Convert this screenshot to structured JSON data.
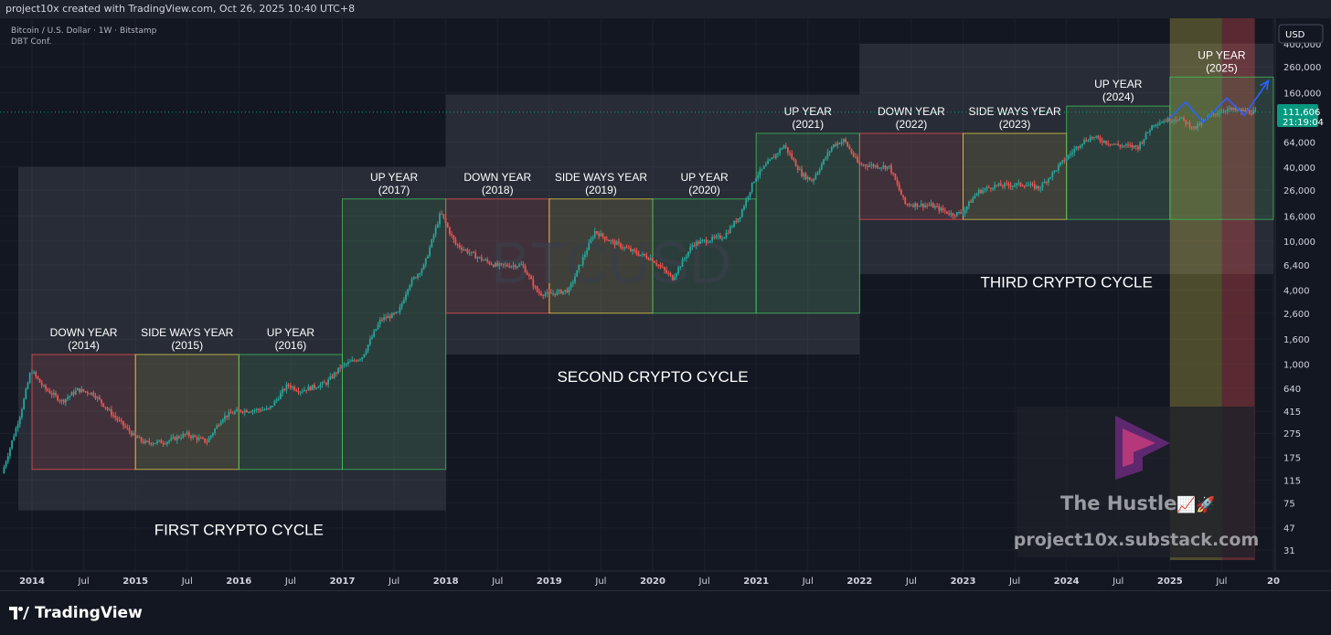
{
  "header": {
    "text": "project10x created with TradingView.com, Oct 26, 2025 10:40 UTC+8"
  },
  "legend": {
    "line1": "Bitcoin / U.S. Dollar · 1W · Bitstamp",
    "line2": "DBT Conf."
  },
  "watermark": "BTCUSD",
  "currency_button": "USD",
  "price_badge": {
    "price": "111,606",
    "countdown": "21:19:04"
  },
  "promo": {
    "title": "The Hustle",
    "emoji": "📈🚀",
    "url": "project10x.substack.com"
  },
  "footer": {
    "brand": "TradingView"
  },
  "colors": {
    "background": "#131722",
    "candle_up": "#26a69a",
    "candle_down": "#ef5350",
    "down_zone": "#ef5350",
    "sideways_zone": "#e6d34a",
    "up_zone": "#43c159",
    "cycle_band": "#787b86",
    "forecast_arrow": "#2962ff",
    "price_badge": "#089981"
  },
  "chart_data": {
    "type": "candlestick",
    "title": "",
    "x_ticks": [
      "2014",
      "Jul",
      "2015",
      "Jul",
      "2016",
      "Jul",
      "2017",
      "Jul",
      "2018",
      "Jul",
      "2019",
      "Jul",
      "2020",
      "Jul",
      "2021",
      "Jul",
      "2022",
      "Jul",
      "2023",
      "Jul",
      "2024",
      "Jul",
      "2025",
      "Jul",
      "20"
    ],
    "y_scale": "log",
    "y_ticks": [
      31,
      47,
      75,
      115,
      175,
      275,
      415,
      640,
      1000,
      1600,
      2600,
      4000,
      6400,
      10000,
      16000,
      26000,
      40000,
      64000,
      160000,
      260000,
      400000
    ],
    "y_tick_labels": [
      "31",
      "47",
      "75",
      "115",
      "175",
      "275",
      "415",
      "640",
      "1,000",
      "1,600",
      "2,600",
      "4,000",
      "6,400",
      "10,000",
      "16,000",
      "26,000",
      "40,000",
      "64,000",
      "160,000",
      "260,000",
      "400,000"
    ],
    "last_price": 111606,
    "price_path": [
      [
        2013.72,
        130
      ],
      [
        2013.9,
        400
      ],
      [
        2014.0,
        900
      ],
      [
        2014.12,
        650
      ],
      [
        2014.3,
        500
      ],
      [
        2014.45,
        620
      ],
      [
        2014.6,
        580
      ],
      [
        2014.8,
        380
      ],
      [
        2015.0,
        260
      ],
      [
        2015.1,
        230
      ],
      [
        2015.3,
        235
      ],
      [
        2015.5,
        270
      ],
      [
        2015.7,
        235
      ],
      [
        2015.85,
        370
      ],
      [
        2016.0,
        420
      ],
      [
        2016.3,
        430
      ],
      [
        2016.48,
        680
      ],
      [
        2016.6,
        610
      ],
      [
        2016.85,
        700
      ],
      [
        2017.0,
        960
      ],
      [
        2017.2,
        1150
      ],
      [
        2017.38,
        2300
      ],
      [
        2017.55,
        2600
      ],
      [
        2017.65,
        4400
      ],
      [
        2017.8,
        6300
      ],
      [
        2017.96,
        17000
      ],
      [
        2018.1,
        9500
      ],
      [
        2018.3,
        7500
      ],
      [
        2018.5,
        6300
      ],
      [
        2018.75,
        6400
      ],
      [
        2018.9,
        3800
      ],
      [
        2019.0,
        3700
      ],
      [
        2019.2,
        4000
      ],
      [
        2019.45,
        12000
      ],
      [
        2019.6,
        10000
      ],
      [
        2019.85,
        8000
      ],
      [
        2020.0,
        7200
      ],
      [
        2020.2,
        5000
      ],
      [
        2020.4,
        9500
      ],
      [
        2020.7,
        11000
      ],
      [
        2020.85,
        16000
      ],
      [
        2021.0,
        33000
      ],
      [
        2021.28,
        60000
      ],
      [
        2021.45,
        35000
      ],
      [
        2021.55,
        31000
      ],
      [
        2021.75,
        60000
      ],
      [
        2021.86,
        66000
      ],
      [
        2022.0,
        42000
      ],
      [
        2022.3,
        40000
      ],
      [
        2022.45,
        20000
      ],
      [
        2022.7,
        19500
      ],
      [
        2022.9,
        16500
      ],
      [
        2023.0,
        17000
      ],
      [
        2023.15,
        25000
      ],
      [
        2023.3,
        28000
      ],
      [
        2023.6,
        29000
      ],
      [
        2023.75,
        27000
      ],
      [
        2023.95,
        42000
      ],
      [
        2024.15,
        63000
      ],
      [
        2024.25,
        70000
      ],
      [
        2024.5,
        60000
      ],
      [
        2024.7,
        58000
      ],
      [
        2024.85,
        90000
      ],
      [
        2024.97,
        96000
      ],
      [
        2025.1,
        100000
      ],
      [
        2025.25,
        82000
      ],
      [
        2025.4,
        105000
      ],
      [
        2025.55,
        118000
      ],
      [
        2025.7,
        114000
      ],
      [
        2025.82,
        111606
      ]
    ],
    "forecast_arrow": [
      [
        2025.0,
        100000
      ],
      [
        2025.15,
        135000
      ],
      [
        2025.32,
        92000
      ],
      [
        2025.55,
        145000
      ],
      [
        2025.72,
        105000
      ],
      [
        2025.95,
        200000
      ]
    ],
    "zones": [
      {
        "label": "DOWN YEAR",
        "year": "(2014)",
        "kind": "down",
        "from": 2014.0,
        "to": 2015.0,
        "low": 140,
        "high": 1200
      },
      {
        "label": "SIDE WAYS YEAR",
        "year": "(2015)",
        "kind": "sideways",
        "from": 2015.0,
        "to": 2016.0,
        "low": 140,
        "high": 1200
      },
      {
        "label": "UP YEAR",
        "year": "(2016)",
        "kind": "up",
        "from": 2016.0,
        "to": 2017.0,
        "low": 140,
        "high": 1200
      },
      {
        "label": "UP YEAR",
        "year": "(2017)",
        "kind": "up",
        "from": 2017.0,
        "to": 2018.0,
        "low": 140,
        "high": 22000
      },
      {
        "label": "DOWN YEAR",
        "year": "(2018)",
        "kind": "down",
        "from": 2018.0,
        "to": 2019.0,
        "low": 2600,
        "high": 22000
      },
      {
        "label": "SIDE WAYS YEAR",
        "year": "(2019)",
        "kind": "sideways",
        "from": 2019.0,
        "to": 2020.0,
        "low": 2600,
        "high": 22000
      },
      {
        "label": "UP YEAR",
        "year": "(2020)",
        "kind": "up",
        "from": 2020.0,
        "to": 2021.0,
        "low": 2600,
        "high": 22000
      },
      {
        "label": "UP YEAR",
        "year": "(2021)",
        "kind": "up",
        "from": 2021.0,
        "to": 2022.0,
        "low": 2600,
        "high": 75000
      },
      {
        "label": "DOWN YEAR",
        "year": "(2022)",
        "kind": "down",
        "from": 2022.0,
        "to": 2023.0,
        "low": 15000,
        "high": 75000
      },
      {
        "label": "SIDE WAYS YEAR",
        "year": "(2023)",
        "kind": "sideways",
        "from": 2023.0,
        "to": 2024.0,
        "low": 15000,
        "high": 75000
      },
      {
        "label": "UP YEAR",
        "year": "(2024)",
        "kind": "up",
        "from": 2024.0,
        "to": 2025.0,
        "low": 15000,
        "high": 125000
      },
      {
        "label": "UP YEAR",
        "year": "(2025)",
        "kind": "up",
        "from": 2025.0,
        "to": 2026.0,
        "low": 15000,
        "high": 215000
      }
    ],
    "cycles": [
      {
        "label": "FIRST CRYPTO CYCLE",
        "from": 2014.0,
        "to": 2018.0,
        "low": 65,
        "high": 40000
      },
      {
        "label": "SECOND CRYPTO CYCLE",
        "from": 2018.0,
        "to": 2022.0,
        "low": 1200,
        "high": 155000
      },
      {
        "label": "THIRD CRYPTO CYCLE",
        "from": 2022.0,
        "to": 2026.0,
        "low": 5400,
        "high": 400000
      }
    ],
    "highlight_2025": [
      {
        "kind": "sideways",
        "from": 2025.0,
        "to": 2025.5
      },
      {
        "kind": "down",
        "from": 2025.5,
        "to": 2025.82
      }
    ]
  }
}
